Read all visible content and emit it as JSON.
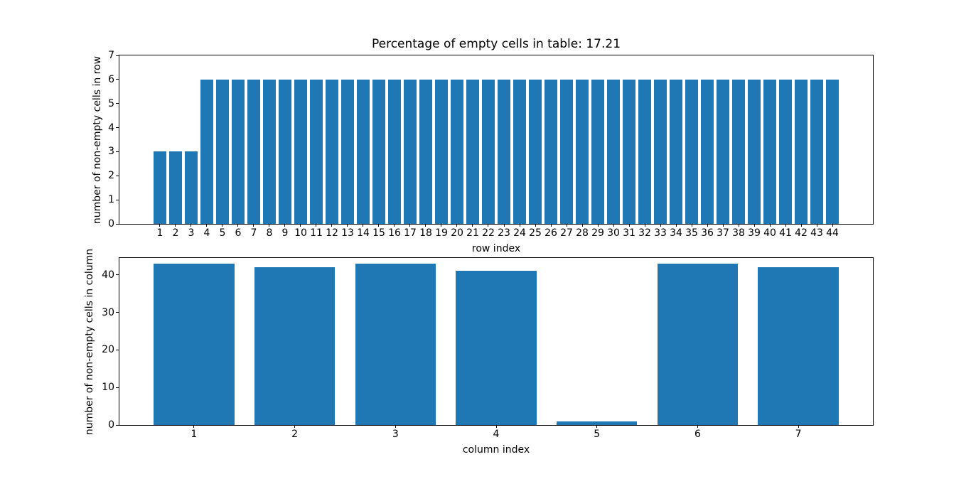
{
  "figure": {
    "background_color": "#ffffff",
    "axis_color": "#000000",
    "text_color": "#000000"
  },
  "chart_data": [
    {
      "type": "bar",
      "title": "Percentage of empty cells in table: 17.21",
      "xlabel": "row index",
      "ylabel": "number of non-empty cells in row",
      "categories": [
        1,
        2,
        3,
        4,
        5,
        6,
        7,
        8,
        9,
        10,
        11,
        12,
        13,
        14,
        15,
        16,
        17,
        18,
        19,
        20,
        21,
        22,
        23,
        24,
        25,
        26,
        27,
        28,
        29,
        30,
        31,
        32,
        33,
        34,
        35,
        36,
        37,
        38,
        39,
        40,
        41,
        42,
        43,
        44
      ],
      "values": [
        3,
        3,
        3,
        6,
        6,
        6,
        6,
        6,
        6,
        6,
        6,
        6,
        6,
        6,
        6,
        6,
        6,
        6,
        6,
        6,
        6,
        6,
        6,
        6,
        6,
        6,
        6,
        6,
        6,
        6,
        6,
        6,
        6,
        6,
        6,
        6,
        6,
        6,
        6,
        6,
        6,
        6,
        6,
        6
      ],
      "ylim": [
        0,
        7
      ],
      "yticks": [
        0,
        1,
        2,
        3,
        4,
        5,
        6,
        7
      ],
      "bar_color": "#1f77b4",
      "bar_width_ratio": 0.8,
      "grid": false,
      "legend": false
    },
    {
      "type": "bar",
      "title": "",
      "xlabel": "column index",
      "ylabel": "number of non-empty cells in column",
      "categories": [
        1,
        2,
        3,
        4,
        5,
        6,
        7
      ],
      "values": [
        43,
        42,
        43,
        41,
        1,
        43,
        42
      ],
      "ylim": [
        0,
        44.5
      ],
      "yticks": [
        0,
        10,
        20,
        30,
        40
      ],
      "bar_color": "#1f77b4",
      "bar_width_ratio": 0.8,
      "grid": false,
      "legend": false
    }
  ]
}
